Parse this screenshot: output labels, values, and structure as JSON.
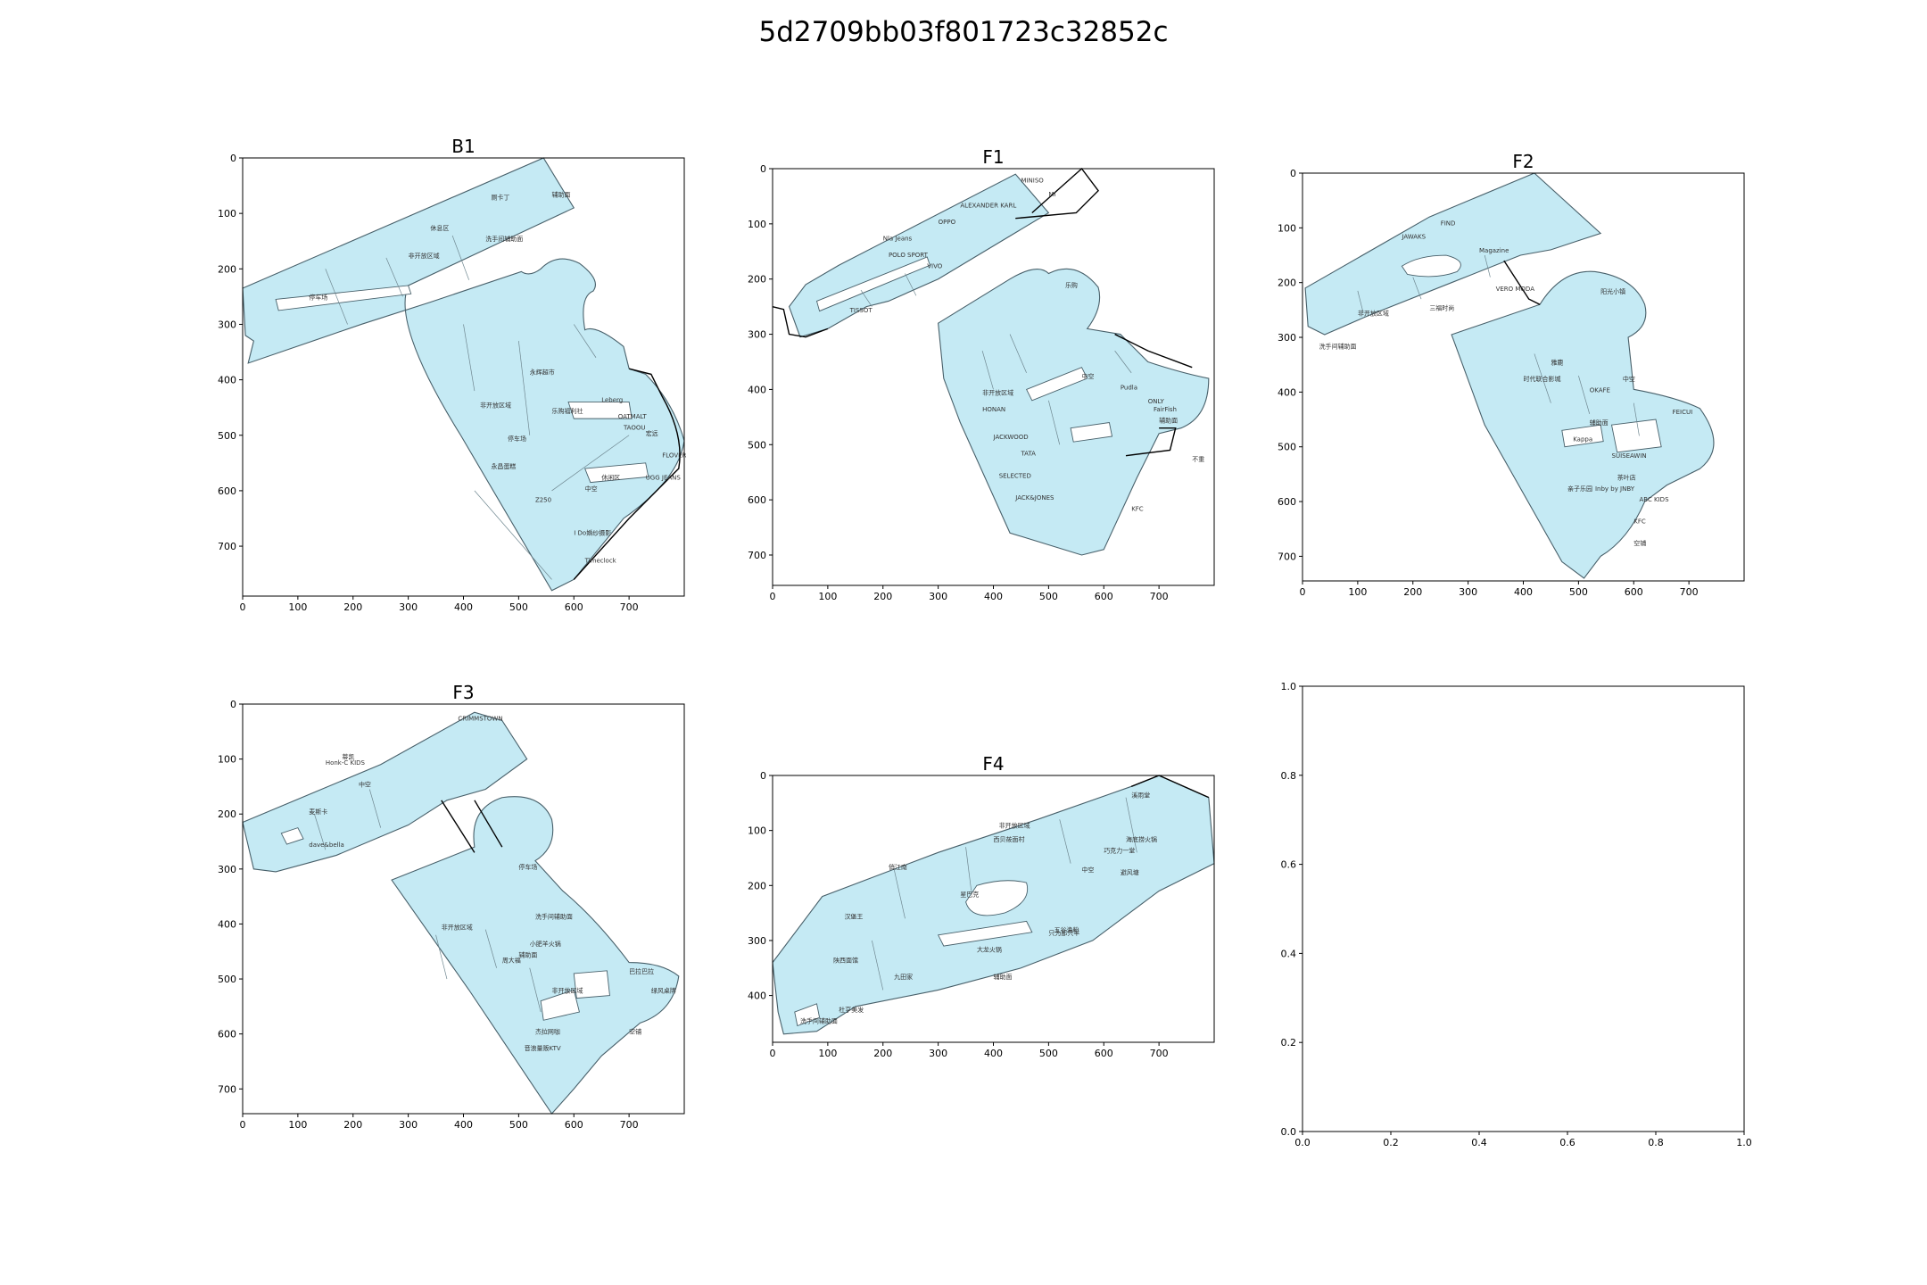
{
  "figure_title": "5d2709bb03f801723c32852c",
  "colors": {
    "floor_fill": "#c5eaf4",
    "floor_edge": "#48606a"
  },
  "chart_data": [
    {
      "type": "map",
      "title": "B1",
      "xlim": [
        0,
        800
      ],
      "ylim": [
        0,
        790
      ],
      "xticks": [
        0,
        100,
        200,
        300,
        400,
        500,
        600,
        700
      ],
      "yticks": [
        0,
        100,
        200,
        300,
        400,
        500,
        600,
        700
      ],
      "shop_labels": [
        "厕卡丁",
        "辅助面",
        "休息区",
        "洗手间辅助面",
        "非开放区域",
        "停车场",
        "永辉超市",
        "非开放区域",
        "乐购福利社",
        "停车场",
        "永昌蛋糕",
        "FLOVER",
        "TAOOU",
        "Leberg",
        "OATMALT",
        "宏远",
        "UGG JEANS",
        "I Do婚纱摄影",
        "Timeclock",
        "Z250",
        "休闲区",
        "中空"
      ]
    },
    {
      "type": "map",
      "title": "F1",
      "xlim": [
        0,
        800
      ],
      "ylim": [
        0,
        755
      ],
      "xticks": [
        0,
        100,
        200,
        300,
        400,
        500,
        600,
        700
      ],
      "yticks": [
        0,
        100,
        200,
        300,
        400,
        500,
        600,
        700
      ],
      "shop_labels": [
        "MINISO",
        "MI",
        "ALEXANDER KARL",
        "OPPO",
        "Nla Jeans",
        "POLO SPORT",
        "TISSOT",
        "VIVO",
        "HONAN",
        "JACKWOOD",
        "SELECTED",
        "JACK&JONES",
        "TATA",
        "ONLY",
        "FairFish",
        "KFC",
        "Pudla",
        "乐购",
        "不重",
        "辅助面",
        "中空",
        "非开放区域"
      ]
    },
    {
      "type": "map",
      "title": "F2",
      "xlim": [
        0,
        800
      ],
      "ylim": [
        0,
        745
      ],
      "xticks": [
        0,
        100,
        200,
        300,
        400,
        500,
        600,
        700
      ],
      "yticks": [
        0,
        100,
        200,
        300,
        400,
        500,
        600,
        700
      ],
      "shop_labels": [
        "JAWAKS",
        "FIND",
        "Magazine",
        "VERO MODA",
        "OKAFE",
        "SUISEAWIN",
        "Kappa",
        "FEICUI",
        "ABC KIDS",
        "Inby by JNBY",
        "KFC",
        "空铺",
        "中空",
        "辅助面",
        "时代联合影城",
        "阳光小镇",
        "三福时尚",
        "雅鹿",
        "非开放区域",
        "洗手间辅助面",
        "茶叶店",
        "亲子乐园"
      ]
    },
    {
      "type": "map",
      "title": "F3",
      "xlim": [
        0,
        800
      ],
      "ylim": [
        0,
        745
      ],
      "xticks": [
        0,
        100,
        200,
        300,
        400,
        500,
        600,
        700
      ],
      "yticks": [
        0,
        100,
        200,
        300,
        400,
        500,
        600,
        700
      ],
      "shop_labels": [
        "CRIMMSTOWN",
        "蒂凯",
        "Honk-C KIDS",
        "麦斯卡",
        "dave&bella",
        "停车场",
        "非开放区域",
        "洗手间辅助面",
        "小肥羊火锅",
        "非开放区域",
        "杰拉网咖",
        "音浪量贩KTV",
        "辅助面",
        "中空",
        "空铺",
        "巴拉巴拉",
        "绿风桌牌",
        "周大福"
      ]
    },
    {
      "type": "map",
      "title": "F4",
      "xlim": [
        0,
        800
      ],
      "ylim": [
        0,
        485
      ],
      "xticks": [
        0,
        100,
        200,
        300,
        400,
        500,
        600,
        700
      ],
      "yticks": [
        0,
        100,
        200,
        300,
        400
      ],
      "shop_labels": [
        "溪雨堂",
        "非开放区域",
        "西贝莜面村",
        "海底捞火锅",
        "巧克力一堂",
        "俏江南",
        "星巴克",
        "避风塘",
        "九田家",
        "大龙火锅",
        "辅助面",
        "中空",
        "洗手间辅助面",
        "杜亨美发",
        "陕西面馆",
        "五谷渔粉",
        "汉堡王",
        "只为那只羊"
      ]
    },
    {
      "type": "empty",
      "title": "",
      "xlim": [
        0,
        1
      ],
      "ylim": [
        0,
        1
      ],
      "xticks": [
        "0.0",
        "0.2",
        "0.4",
        "0.6",
        "0.8",
        "1.0"
      ],
      "yticks": [
        "0.0",
        "0.2",
        "0.4",
        "0.6",
        "0.8",
        "1.0"
      ]
    }
  ]
}
